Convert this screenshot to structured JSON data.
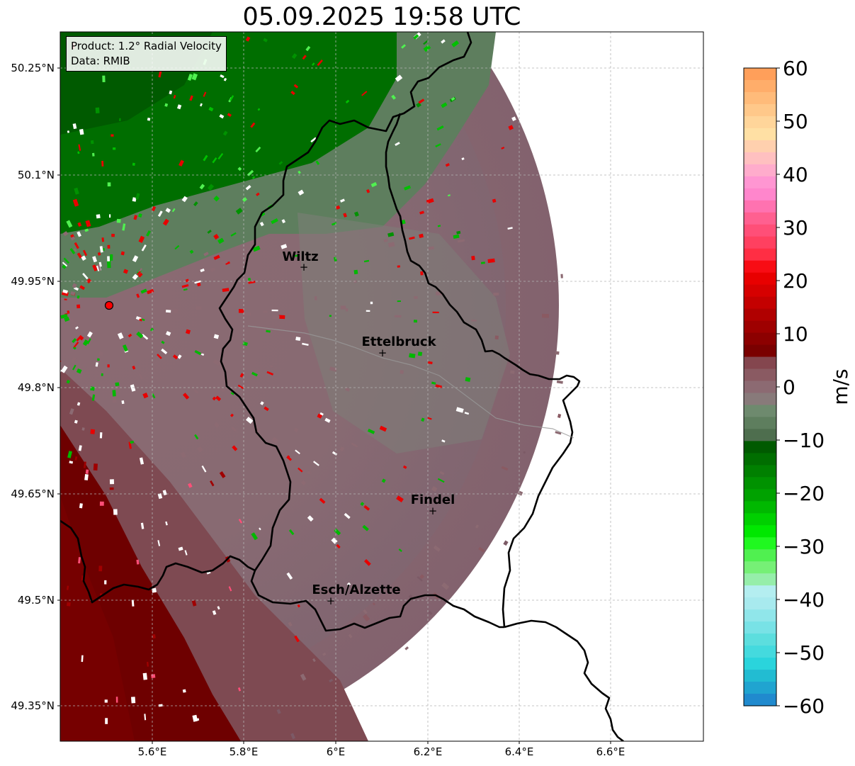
{
  "title": "05.09.2025 19:58 UTC",
  "info": {
    "product": "Product: 1.2° Radial Velocity",
    "data_source": "Data: RMIB"
  },
  "axes": {
    "lon_ticks": [
      "5.6°E",
      "5.8°E",
      "6°E",
      "6.2°E",
      "6.4°E",
      "6.6°E"
    ],
    "lat_ticks": [
      "50.25°N",
      "50.1°N",
      "49.95°N",
      "49.8°N",
      "49.65°N",
      "49.5°N",
      "49.35°N"
    ],
    "grid": true
  },
  "cities": [
    {
      "name": "Wiltz"
    },
    {
      "name": "Ettelbruck"
    },
    {
      "name": "Findel"
    },
    {
      "name": "Esch/Alzette"
    }
  ],
  "colorbar": {
    "unit": "m/s",
    "range": [
      -60,
      60
    ],
    "ticks": [
      "60",
      "50",
      "40",
      "30",
      "20",
      "10",
      "0",
      "−10",
      "−20",
      "−30",
      "−40",
      "−50",
      "−60"
    ],
    "colors": [
      "#ff9f5a",
      "#ffad6a",
      "#ffbb7a",
      "#ffc88a",
      "#ffd59a",
      "#ffe0a4",
      "#ffd0ae",
      "#ffc0c0",
      "#ffaccc",
      "#ff96d2",
      "#ff86cc",
      "#ff72b0",
      "#ff6090",
      "#ff4f78",
      "#ff4060",
      "#ff2e44",
      "#f80c14",
      "#e80000",
      "#d60000",
      "#c40000",
      "#b00000",
      "#9e0000",
      "#8c0000",
      "#7a0000",
      "#84464e",
      "#8a5a62",
      "#8c6a72",
      "#887a7a",
      "#6e8a6e",
      "#5e7e5e",
      "#4e6e4e",
      "#005a00",
      "#006e00",
      "#008000",
      "#009200",
      "#00a200",
      "#00b800",
      "#00d000",
      "#00e800",
      "#20f820",
      "#50f050",
      "#76f076",
      "#96eeaa",
      "#b4eef0",
      "#a8eaee",
      "#90e6ea",
      "#78e2e6",
      "#5cdede",
      "#44dade",
      "#2ad4dc",
      "#22bcd2",
      "#20a4d0",
      "#208ace"
    ]
  },
  "radar_site_color": "#ff0000"
}
